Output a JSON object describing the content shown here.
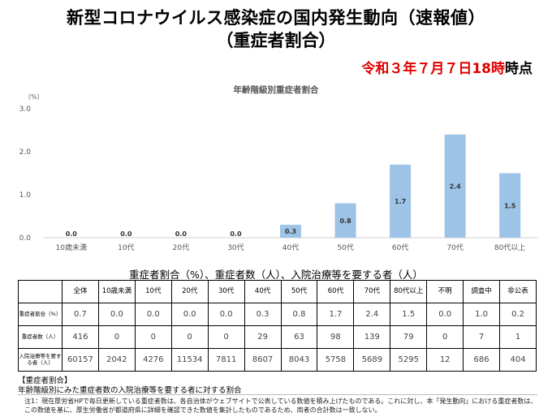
{
  "header": {
    "title_line1": "新型コロナウイルス感染症の国内発生動向（速報値）",
    "title_line2": "（重症者割合）",
    "as_of_date": "令和３年７月７日18時",
    "as_of_suffix": "時点"
  },
  "chart_data": {
    "type": "bar",
    "title": "年齢階級別重症者割合",
    "ylabel": "（%）",
    "ylim": [
      0,
      3.0
    ],
    "yticks": [
      "0.0",
      "1.0",
      "2.0",
      "3.0"
    ],
    "grid": false,
    "bar_color": "#9dc3e6",
    "categories": [
      "10歳未満",
      "10代",
      "20代",
      "30代",
      "40代",
      "50代",
      "60代",
      "70代",
      "80代以上"
    ],
    "values": [
      0.0,
      0.0,
      0.0,
      0.0,
      0.3,
      0.8,
      1.7,
      2.4,
      1.5
    ],
    "labels": [
      "0.0",
      "0.0",
      "0.0",
      "0.0",
      "0.3",
      "0.8",
      "1.7",
      "2.4",
      "1.5"
    ]
  },
  "table": {
    "title": "重症者割合（%）、重症者数（人）、入院治療等を要する者（人）",
    "columns": [
      "全体",
      "10歳未満",
      "10代",
      "20代",
      "30代",
      "40代",
      "50代",
      "60代",
      "70代",
      "80代以上",
      "不明",
      "調査中",
      "非公表"
    ],
    "rows": [
      {
        "label": "重症者割合（%）",
        "values": [
          "0.7",
          "0.0",
          "0.0",
          "0.0",
          "0.0",
          "0.3",
          "0.8",
          "1.7",
          "2.4",
          "1.5",
          "0.0",
          "1.0",
          "0.2"
        ]
      },
      {
        "label": "重症者数（人）",
        "values": [
          "416",
          "0",
          "0",
          "0",
          "0",
          "29",
          "63",
          "98",
          "139",
          "79",
          "0",
          "7",
          "1"
        ]
      },
      {
        "label": "入院治療等を要する者（人）",
        "values": [
          "60157",
          "2042",
          "4276",
          "11534",
          "7811",
          "8607",
          "8043",
          "5758",
          "5689",
          "5295",
          "12",
          "686",
          "404"
        ]
      }
    ]
  },
  "notes": {
    "heading": "【重症者割合】",
    "definition": "年齢階級別にみた重症者数の入院治療等を要する者に対する割合",
    "footnote": "注1：現在厚労省HPで毎日更新している重症者数は、各自治体がウェブサイトで公表している数値を積み上げたものである。これに対し、本「発生動向」における重症者数は、この数値を基に、厚生労働省が都道府県に詳細を確認できた数値を集計したものであるため、両者の合計数は一致しない。"
  }
}
